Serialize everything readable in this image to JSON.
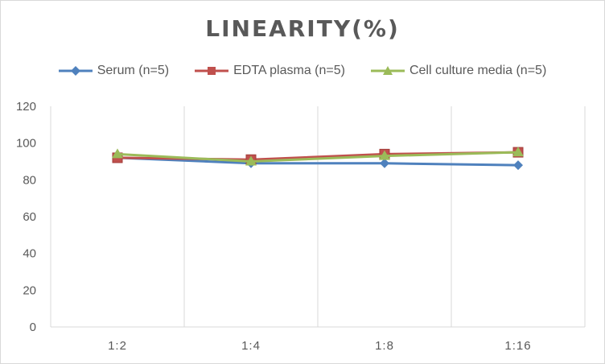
{
  "chart_data": {
    "type": "line",
    "title": "LINEARITY(%)",
    "categories": [
      "1:2",
      "1:4",
      "1:8",
      "1:16"
    ],
    "ylim": [
      0,
      120
    ],
    "yticks": [
      0,
      20,
      40,
      60,
      80,
      100,
      120
    ],
    "grid": "vertical",
    "legend_position": "top",
    "series": [
      {
        "name": "Serum (n=5)",
        "values": [
          92,
          89,
          89,
          88
        ],
        "color": "#4f81bd",
        "marker": "diamond"
      },
      {
        "name": "EDTA plasma (n=5)",
        "values": [
          92,
          91,
          94,
          95
        ],
        "color": "#c0504d",
        "marker": "square"
      },
      {
        "name": "Cell culture media (n=5)",
        "values": [
          94,
          90,
          93,
          95
        ],
        "color": "#9bbb59",
        "marker": "triangle"
      }
    ]
  }
}
